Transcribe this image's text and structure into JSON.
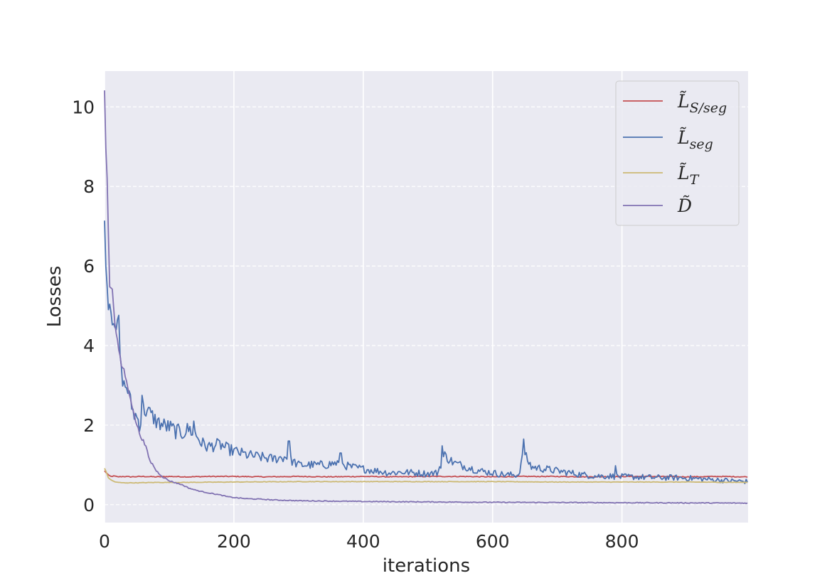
{
  "chart_data": {
    "type": "line",
    "xlabel": "iterations",
    "ylabel": "Losses",
    "xlim": [
      0,
      995
    ],
    "ylim": [
      -0.45,
      10.9
    ],
    "x_ticks": [
      0,
      200,
      400,
      600,
      800
    ],
    "y_ticks": [
      0,
      2,
      4,
      6,
      8,
      10
    ],
    "grid": true,
    "legend_position": "top-right",
    "series": [
      {
        "name": "L̃S/seg",
        "legend_main": "L̃",
        "legend_sub": "S/seg",
        "color": "#c44e52",
        "points": [
          [
            0,
            0.85
          ],
          [
            3,
            0.8
          ],
          [
            6,
            0.74
          ],
          [
            10,
            0.71
          ],
          [
            15,
            0.72
          ],
          [
            20,
            0.7
          ],
          [
            30,
            0.71
          ],
          [
            40,
            0.7
          ],
          [
            60,
            0.71
          ],
          [
            80,
            0.7
          ],
          [
            100,
            0.71
          ],
          [
            130,
            0.7
          ],
          [
            160,
            0.71
          ],
          [
            200,
            0.71
          ],
          [
            250,
            0.7
          ],
          [
            300,
            0.71
          ],
          [
            350,
            0.7
          ],
          [
            400,
            0.71
          ],
          [
            450,
            0.7
          ],
          [
            500,
            0.71
          ],
          [
            550,
            0.71
          ],
          [
            600,
            0.7
          ],
          [
            650,
            0.71
          ],
          [
            700,
            0.71
          ],
          [
            750,
            0.7
          ],
          [
            800,
            0.71
          ],
          [
            850,
            0.71
          ],
          [
            900,
            0.7
          ],
          [
            950,
            0.71
          ],
          [
            995,
            0.7
          ]
        ],
        "noise": 0.018
      },
      {
        "name": "L̃seg",
        "legend_main": "L̃",
        "legend_sub": "seg",
        "color": "#4c72b0",
        "points": [
          [
            0,
            7.0
          ],
          [
            3,
            5.8
          ],
          [
            5,
            5.1
          ],
          [
            8,
            5.1
          ],
          [
            12,
            4.7
          ],
          [
            15,
            4.7
          ],
          [
            18,
            4.2
          ],
          [
            22,
            4.6
          ],
          [
            25,
            3.4
          ],
          [
            30,
            3.0
          ],
          [
            35,
            2.95
          ],
          [
            40,
            2.6
          ],
          [
            45,
            2.3
          ],
          [
            50,
            2.2
          ],
          [
            55,
            2.0
          ],
          [
            60,
            2.4
          ],
          [
            70,
            2.3
          ],
          [
            80,
            2.1
          ],
          [
            90,
            2.0
          ],
          [
            100,
            1.95
          ],
          [
            110,
            1.85
          ],
          [
            120,
            1.8
          ],
          [
            130,
            1.9
          ],
          [
            140,
            1.8
          ],
          [
            150,
            1.55
          ],
          [
            160,
            1.45
          ],
          [
            170,
            1.5
          ],
          [
            180,
            1.5
          ],
          [
            190,
            1.4
          ],
          [
            200,
            1.35
          ],
          [
            220,
            1.25
          ],
          [
            240,
            1.2
          ],
          [
            260,
            1.15
          ],
          [
            280,
            1.2
          ],
          [
            300,
            1.0
          ],
          [
            320,
            1.0
          ],
          [
            340,
            1.0
          ],
          [
            360,
            1.05
          ],
          [
            380,
            0.95
          ],
          [
            400,
            0.9
          ],
          [
            420,
            0.85
          ],
          [
            440,
            0.8
          ],
          [
            460,
            0.82
          ],
          [
            480,
            0.8
          ],
          [
            500,
            0.78
          ],
          [
            515,
            0.8
          ],
          [
            525,
            1.25
          ],
          [
            540,
            1.05
          ],
          [
            560,
            0.95
          ],
          [
            580,
            0.85
          ],
          [
            600,
            0.8
          ],
          [
            620,
            0.75
          ],
          [
            640,
            0.75
          ],
          [
            648,
            1.3
          ],
          [
            660,
            0.95
          ],
          [
            680,
            0.9
          ],
          [
            700,
            0.85
          ],
          [
            720,
            0.8
          ],
          [
            740,
            0.75
          ],
          [
            760,
            0.72
          ],
          [
            780,
            0.72
          ],
          [
            800,
            0.7
          ],
          [
            820,
            0.7
          ],
          [
            850,
            0.68
          ],
          [
            880,
            0.68
          ],
          [
            910,
            0.66
          ],
          [
            940,
            0.63
          ],
          [
            970,
            0.6
          ],
          [
            995,
            0.58
          ]
        ],
        "spikes": [
          [
            20,
            4.65
          ],
          [
            58,
            2.75
          ],
          [
            138,
            2.1
          ],
          [
            285,
            1.6
          ],
          [
            365,
            1.3
          ],
          [
            522,
            1.48
          ],
          [
            648,
            1.65
          ],
          [
            790,
            0.98
          ]
        ],
        "noise": 0.13
      },
      {
        "name": "L̃T",
        "legend_main": "L̃",
        "legend_sub": "T",
        "color": "#ccb974",
        "points": [
          [
            0,
            0.92
          ],
          [
            3,
            0.8
          ],
          [
            6,
            0.68
          ],
          [
            10,
            0.62
          ],
          [
            15,
            0.58
          ],
          [
            20,
            0.56
          ],
          [
            30,
            0.55
          ],
          [
            50,
            0.55
          ],
          [
            80,
            0.56
          ],
          [
            120,
            0.56
          ],
          [
            200,
            0.57
          ],
          [
            300,
            0.58
          ],
          [
            400,
            0.58
          ],
          [
            500,
            0.58
          ],
          [
            600,
            0.58
          ],
          [
            700,
            0.57
          ],
          [
            800,
            0.57
          ],
          [
            900,
            0.57
          ],
          [
            995,
            0.56
          ]
        ],
        "noise": 0.014
      },
      {
        "name": "D̃",
        "legend_main": "D̃",
        "legend_sub": "",
        "color": "#8172b2",
        "points": [
          [
            0,
            10.4
          ],
          [
            2,
            9.0
          ],
          [
            4,
            8.2
          ],
          [
            6,
            6.8
          ],
          [
            8,
            5.5
          ],
          [
            12,
            5.45
          ],
          [
            15,
            4.7
          ],
          [
            18,
            4.3
          ],
          [
            22,
            3.9
          ],
          [
            26,
            3.5
          ],
          [
            30,
            3.4
          ],
          [
            35,
            3.0
          ],
          [
            40,
            2.7
          ],
          [
            45,
            2.3
          ],
          [
            50,
            2.0
          ],
          [
            55,
            1.75
          ],
          [
            60,
            1.6
          ],
          [
            65,
            1.4
          ],
          [
            70,
            1.1
          ],
          [
            75,
            1.0
          ],
          [
            80,
            0.85
          ],
          [
            90,
            0.7
          ],
          [
            100,
            0.6
          ],
          [
            110,
            0.55
          ],
          [
            120,
            0.5
          ],
          [
            130,
            0.42
          ],
          [
            140,
            0.37
          ],
          [
            150,
            0.33
          ],
          [
            160,
            0.3
          ],
          [
            170,
            0.27
          ],
          [
            180,
            0.24
          ],
          [
            190,
            0.2
          ],
          [
            200,
            0.18
          ],
          [
            220,
            0.15
          ],
          [
            240,
            0.14
          ],
          [
            260,
            0.12
          ],
          [
            280,
            0.11
          ],
          [
            300,
            0.1
          ],
          [
            350,
            0.09
          ],
          [
            400,
            0.08
          ],
          [
            500,
            0.07
          ],
          [
            600,
            0.06
          ],
          [
            700,
            0.055
          ],
          [
            800,
            0.05
          ],
          [
            900,
            0.045
          ],
          [
            995,
            0.04
          ]
        ],
        "noise": 0.03
      }
    ]
  }
}
